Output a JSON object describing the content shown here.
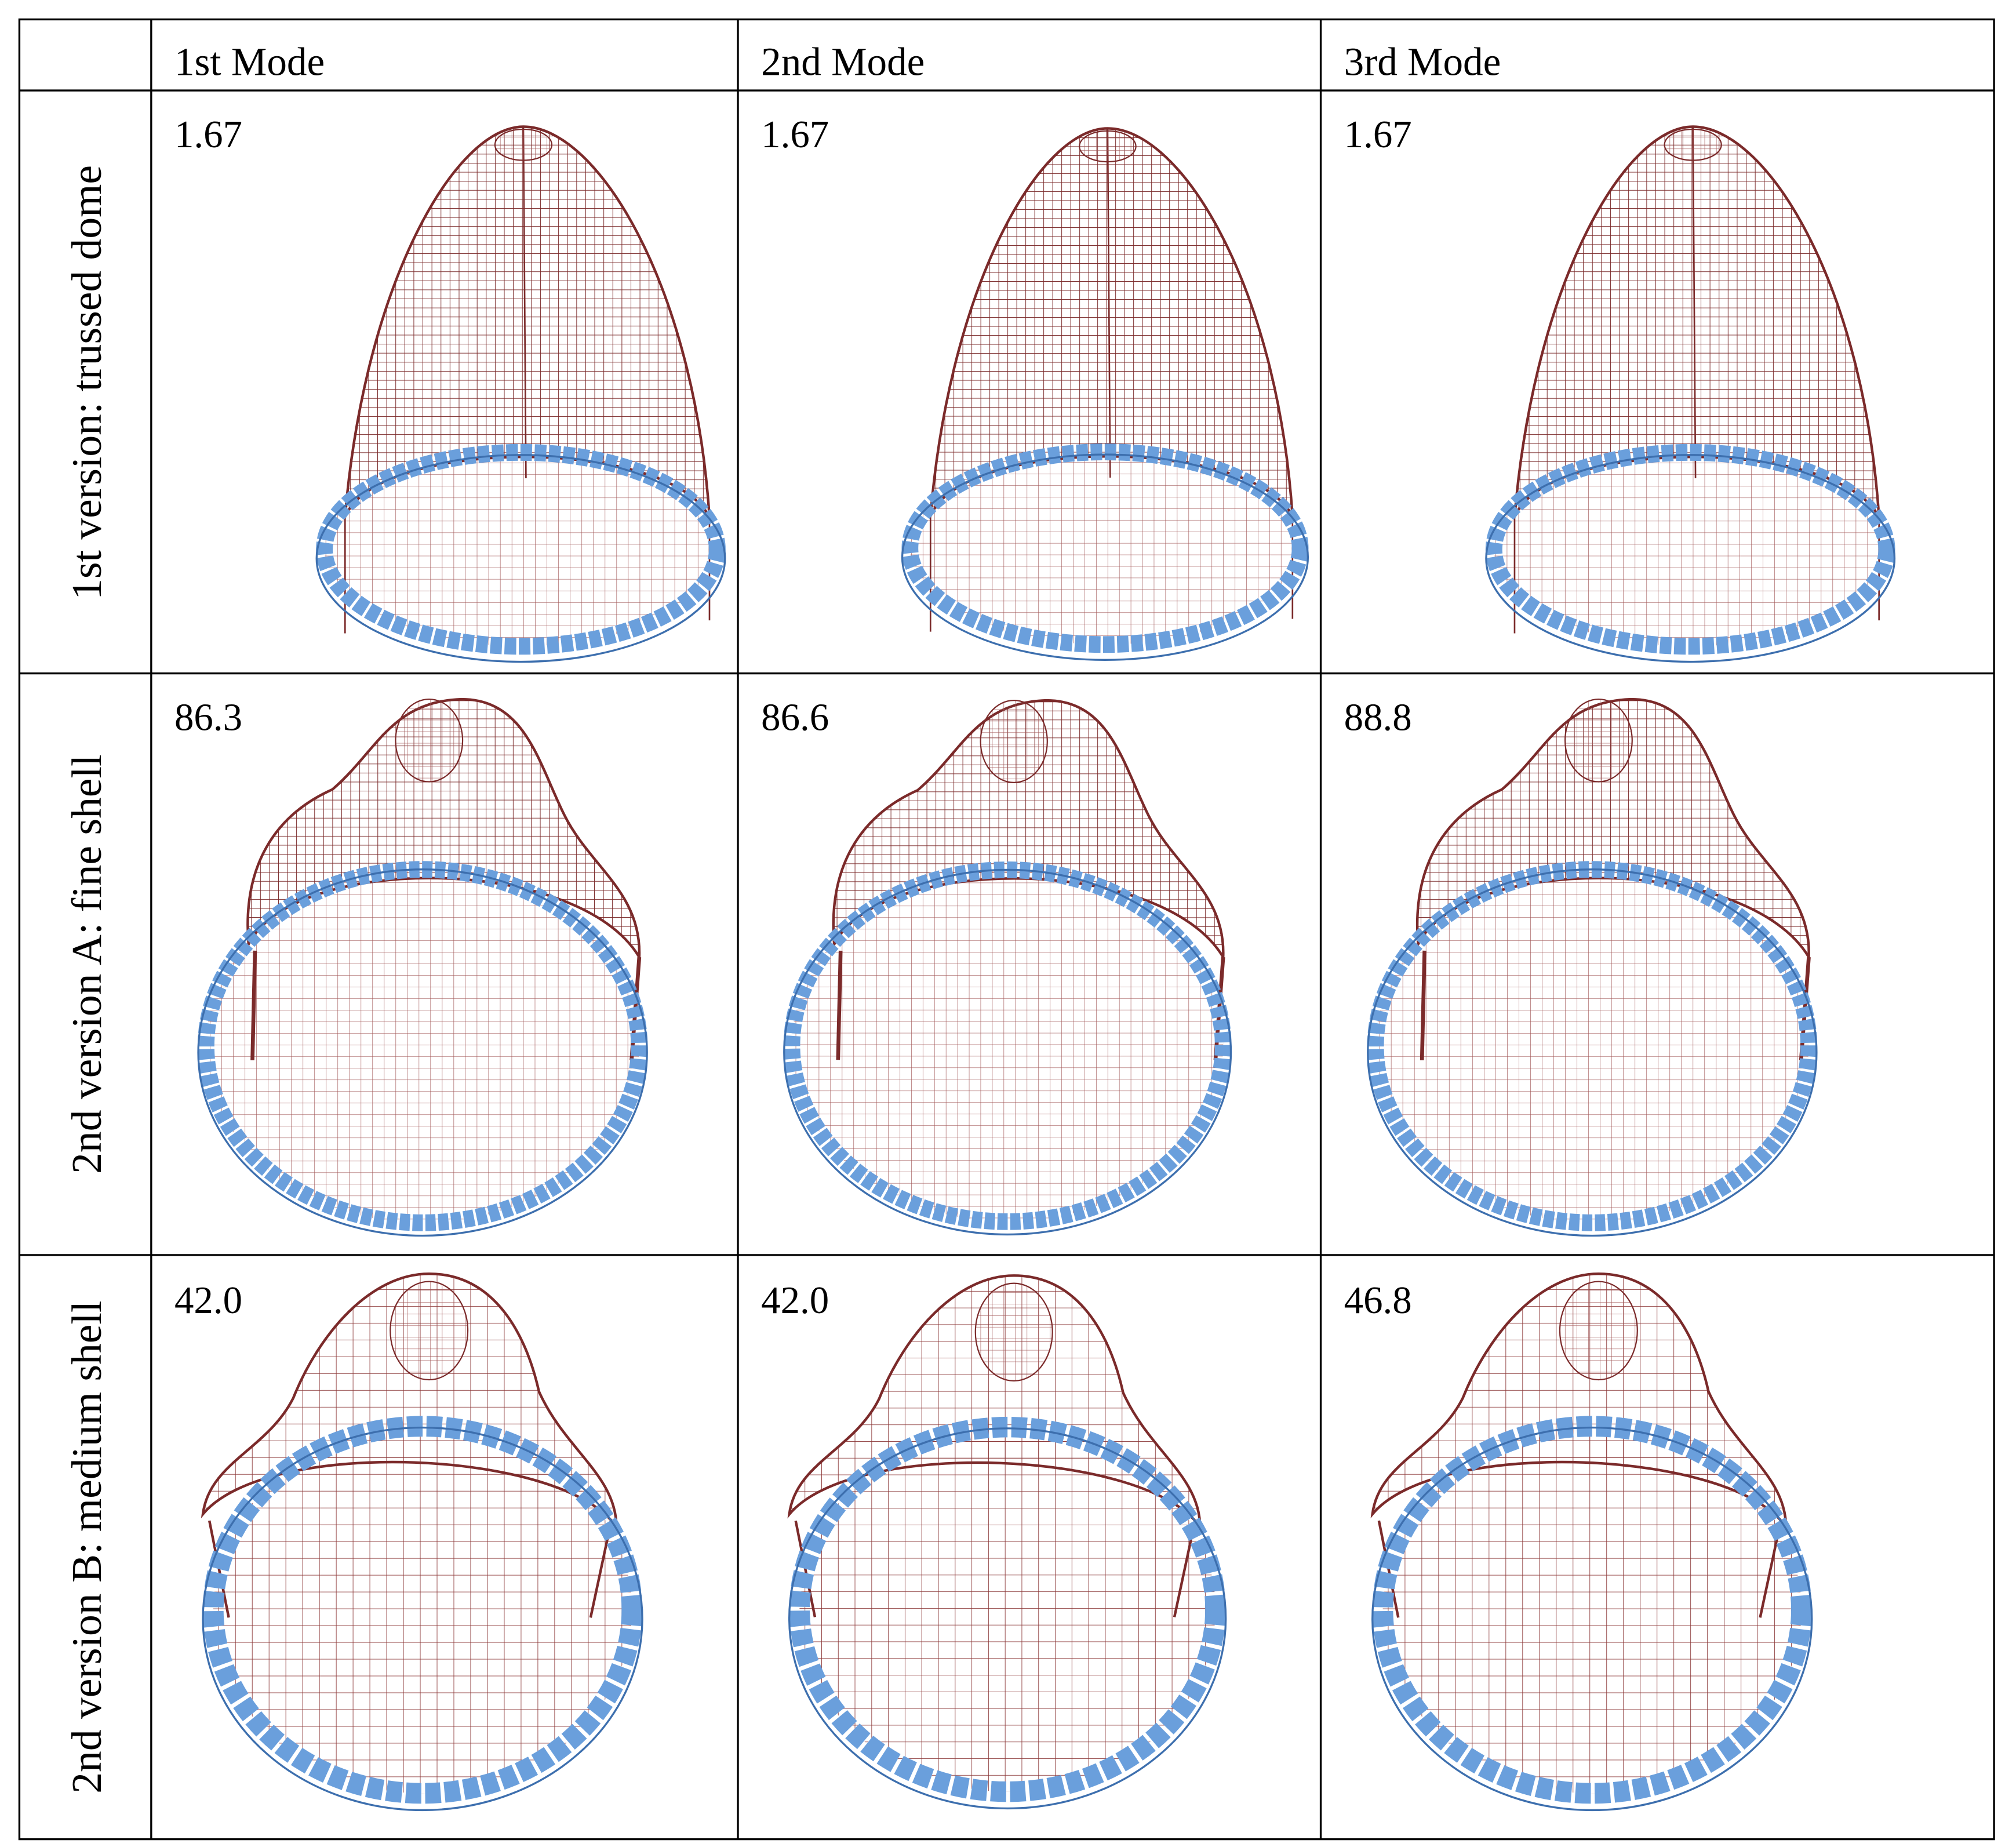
{
  "table": {
    "header": [
      "1st Mode",
      "2nd Mode",
      "3rd Mode"
    ],
    "rows": [
      {
        "label": "1st version: trussed dome",
        "values": [
          "1.67",
          "1.67",
          "1.67"
        ]
      },
      {
        "label": "2nd version A: fine shell",
        "values": [
          "86.3",
          "86.6",
          "88.8"
        ]
      },
      {
        "label": "2nd version B: medium shell",
        "values": [
          "42.0",
          "42.0",
          "46.8"
        ]
      }
    ]
  }
}
